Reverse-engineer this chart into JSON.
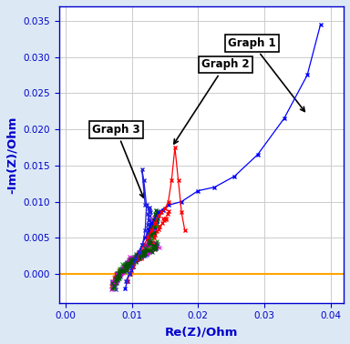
{
  "title": "",
  "xlabel": "Re(Z)/Ohm",
  "ylabel": "-Im(Z)/Ohm",
  "xlim": [
    -0.001,
    0.042
  ],
  "ylim": [
    -0.004,
    0.037
  ],
  "yticks": [
    0.0,
    0.005,
    0.01,
    0.015,
    0.02,
    0.025,
    0.03,
    0.035
  ],
  "xticks": [
    0.0,
    0.01,
    0.02,
    0.03,
    0.04
  ],
  "background_color": "#dce9f5",
  "plot_bg_color": "#ffffff",
  "axis_color": "#0000cc",
  "label_color": "#0000cc",
  "orange_line_y": 0.0,
  "graph1_label": "Graph 1",
  "graph2_label": "Graph 2",
  "graph3_label": "Graph 3",
  "c1": "#0000ff",
  "c2": "#ff0000",
  "c3": "#2222dd",
  "c4": "#009900",
  "c5": "#dd00dd",
  "c6": "#005500"
}
